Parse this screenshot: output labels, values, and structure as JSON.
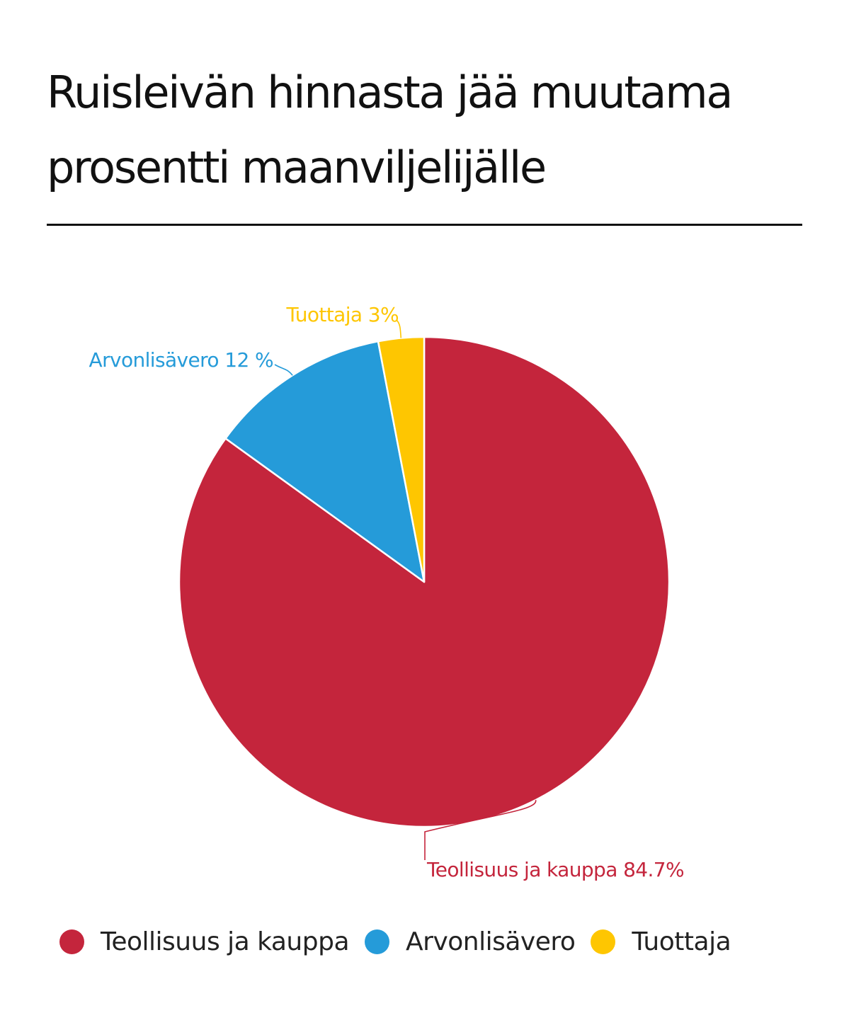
{
  "chart_data": {
    "type": "pie",
    "title": "Ruisleivän hinnasta jää muutama prosentti maanviljelijälle",
    "slices": [
      {
        "name": "Teollisuus ja kauppa",
        "value": 84.7,
        "label": "Teollisuus ja kauppa 84.7%",
        "color": "#c4253c"
      },
      {
        "name": "Arvonlisävero",
        "value": 12,
        "label": "Arvonlisävero 12 %",
        "color": "#259bd9"
      },
      {
        "name": "Tuottaja",
        "value": 3,
        "label": "Tuottaja 3%",
        "color": "#fec601"
      }
    ],
    "legend": {
      "position": "bottom",
      "items": [
        "Teollisuus ja kauppa",
        "Arvonlisävero",
        "Tuottaja"
      ]
    }
  }
}
